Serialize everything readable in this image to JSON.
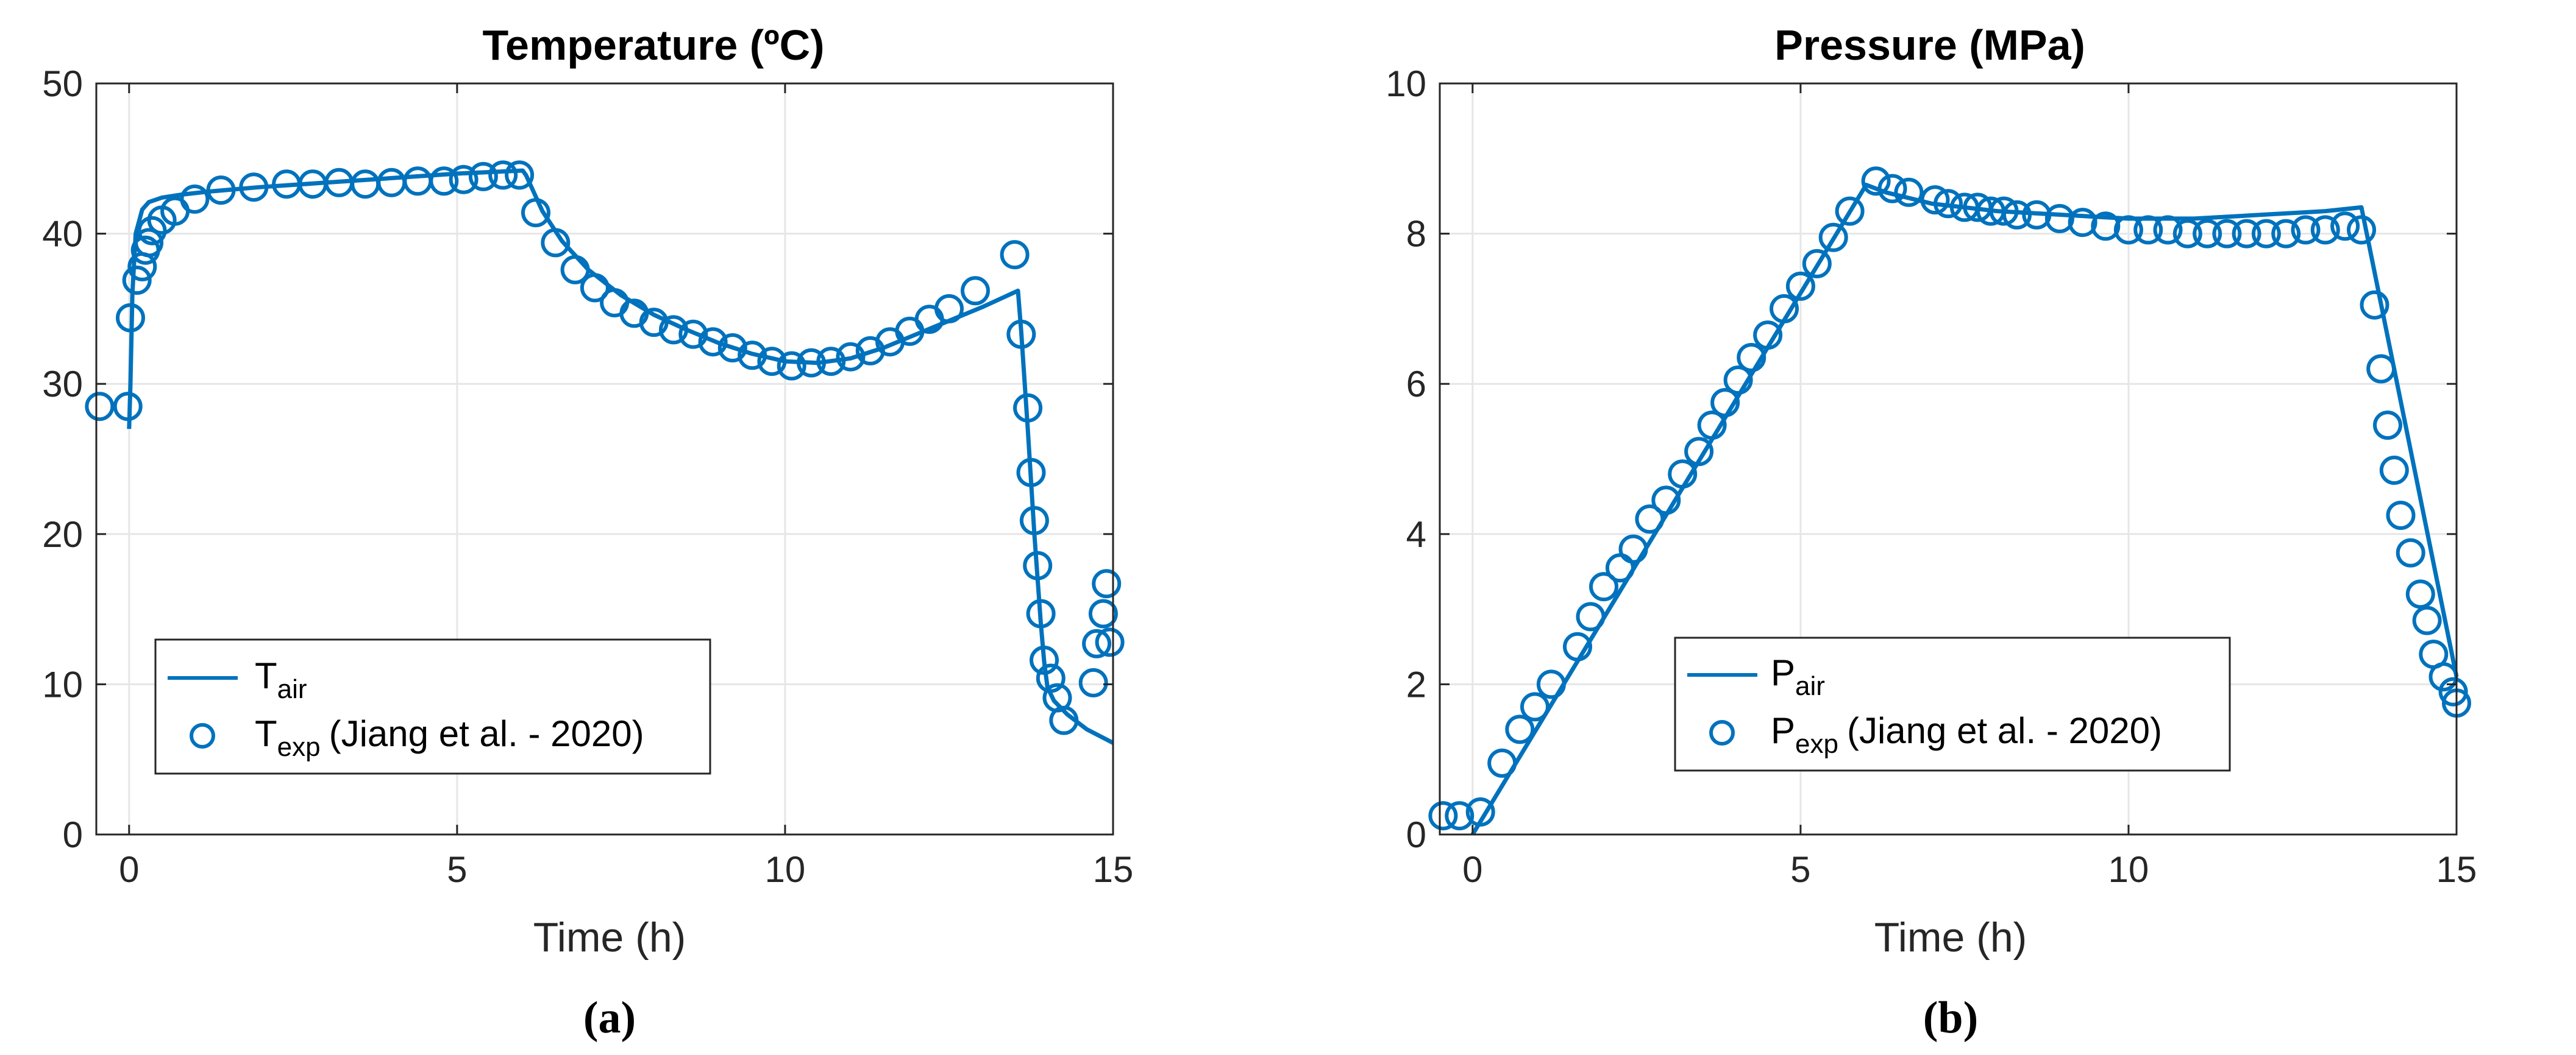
{
  "colors": {
    "series": "#0072BD",
    "grid": "#E6E6E6",
    "axis": "#262626",
    "background": "#FFFFFF"
  },
  "panels": [
    {
      "label": "(a)"
    },
    {
      "label": "(b)"
    }
  ],
  "chart_data": [
    {
      "type": "line",
      "title": "Temperature (ºC)",
      "xlabel": "Time (h)",
      "ylabel": "",
      "xlim": [
        -0.5,
        15
      ],
      "ylim": [
        0,
        50
      ],
      "xticks": [
        0,
        5,
        10,
        15
      ],
      "yticks": [
        0,
        10,
        20,
        30,
        40,
        50
      ],
      "grid": true,
      "legend_position": "bottom-left",
      "series": [
        {
          "name": "T_air",
          "legend_main": "T",
          "legend_sub": "air",
          "legend_tail": "",
          "style": "line",
          "x": [
            0,
            0.02,
            0.05,
            0.1,
            0.2,
            0.3,
            0.5,
            0.8,
            1.2,
            2,
            3,
            4,
            5,
            5.5,
            6.0,
            6.05,
            6.3,
            6.6,
            7.0,
            7.5,
            8.0,
            8.5,
            9.0,
            9.5,
            10.0,
            10.5,
            11.0,
            11.5,
            12.0,
            12.5,
            13.0,
            13.55,
            13.6,
            13.7,
            13.8,
            13.9,
            13.95,
            14.0,
            14.1,
            14.3,
            14.6,
            15.0
          ],
          "y": [
            27.0,
            30.0,
            36.0,
            40.0,
            41.6,
            42.1,
            42.4,
            42.6,
            42.8,
            43.1,
            43.4,
            43.7,
            44.0,
            44.1,
            44.2,
            43.9,
            41.5,
            39.5,
            37.6,
            35.9,
            34.6,
            33.6,
            32.7,
            32.0,
            31.5,
            31.4,
            31.7,
            32.4,
            33.3,
            34.2,
            35.1,
            36.2,
            33.5,
            27.0,
            20.0,
            14.0,
            11.5,
            9.8,
            8.9,
            8.0,
            7.0,
            6.1
          ]
        },
        {
          "name": "T_exp (Jiang et al. - 2020)",
          "legend_main": "T",
          "legend_sub": "exp",
          "legend_tail": "(Jiang et al. - 2020)",
          "style": "markers",
          "x": [
            -0.45,
            -0.02,
            0.02,
            0.12,
            0.2,
            0.25,
            0.3,
            0.35,
            0.5,
            0.7,
            1.0,
            1.4,
            1.9,
            2.4,
            2.8,
            3.2,
            3.6,
            4.0,
            4.4,
            4.8,
            5.1,
            5.4,
            5.7,
            5.95,
            6.2,
            6.5,
            6.8,
            7.1,
            7.4,
            7.7,
            8.0,
            8.3,
            8.6,
            8.9,
            9.2,
            9.5,
            9.8,
            10.1,
            10.4,
            10.7,
            11.0,
            11.3,
            11.6,
            11.9,
            12.2,
            12.5,
            12.9,
            13.5,
            13.6,
            13.7,
            13.75,
            13.8,
            13.85,
            13.9,
            13.95,
            14.05,
            14.15,
            14.25,
            14.7,
            14.75,
            14.85,
            14.9,
            14.95
          ],
          "y": [
            28.5,
            28.5,
            34.4,
            36.9,
            37.8,
            38.9,
            39.4,
            40.2,
            40.9,
            41.5,
            42.3,
            42.9,
            43.1,
            43.3,
            43.3,
            43.4,
            43.3,
            43.4,
            43.5,
            43.5,
            43.6,
            43.8,
            43.9,
            43.9,
            41.4,
            39.4,
            37.6,
            36.4,
            35.4,
            34.7,
            34.1,
            33.6,
            33.3,
            32.8,
            32.4,
            31.9,
            31.5,
            31.2,
            31.4,
            31.5,
            31.8,
            32.2,
            32.8,
            33.5,
            34.3,
            35.0,
            36.2,
            38.6,
            33.3,
            28.4,
            24.1,
            20.9,
            17.9,
            14.7,
            11.6,
            10.4,
            9.1,
            7.6,
            10.1,
            12.7,
            14.7,
            16.7,
            12.8
          ]
        }
      ]
    },
    {
      "type": "line",
      "title": "Pressure (MPa)",
      "xlabel": "Time (h)",
      "ylabel": "",
      "xlim": [
        -0.5,
        15
      ],
      "ylim": [
        0,
        10
      ],
      "xticks": [
        0,
        5,
        10,
        15
      ],
      "yticks": [
        0,
        2,
        4,
        6,
        8,
        10
      ],
      "grid": true,
      "legend_position": "bottom-center",
      "series": [
        {
          "name": "P_air",
          "legend_main": "P",
          "legend_sub": "air",
          "legend_tail": "",
          "style": "line",
          "x": [
            0,
            6.0,
            6.3,
            7.0,
            8.0,
            9.0,
            10.0,
            11.0,
            12.0,
            13.0,
            13.55,
            15.0
          ],
          "y": [
            0,
            8.65,
            8.55,
            8.4,
            8.3,
            8.25,
            8.2,
            8.2,
            8.25,
            8.3,
            8.35,
            2.1
          ]
        },
        {
          "name": "P_exp (Jiang et al. - 2020)",
          "legend_main": "P",
          "legend_sub": "exp",
          "legend_tail": "(Jiang et al. - 2020)",
          "style": "markers",
          "x": [
            -0.45,
            -0.2,
            0.12,
            0.45,
            0.72,
            0.95,
            1.2,
            1.6,
            1.8,
            2.0,
            2.25,
            2.45,
            2.7,
            2.95,
            3.2,
            3.45,
            3.65,
            3.85,
            4.05,
            4.25,
            4.5,
            4.75,
            5.0,
            5.25,
            5.5,
            5.75,
            6.15,
            6.4,
            6.65,
            7.05,
            7.25,
            7.5,
            7.7,
            7.9,
            8.1,
            8.3,
            8.6,
            8.95,
            9.3,
            9.65,
            10.0,
            10.3,
            10.6,
            10.9,
            11.2,
            11.5,
            11.8,
            12.1,
            12.4,
            12.7,
            13.0,
            13.3,
            13.55,
            13.75,
            13.85,
            13.95,
            14.05,
            14.15,
            14.3,
            14.45,
            14.55,
            14.65,
            14.8,
            14.95,
            15.0
          ],
          "y": [
            0.25,
            0.25,
            0.3,
            0.95,
            1.4,
            1.7,
            2.0,
            2.5,
            2.9,
            3.3,
            3.55,
            3.8,
            4.2,
            4.45,
            4.8,
            5.1,
            5.45,
            5.75,
            6.05,
            6.35,
            6.65,
            7.0,
            7.3,
            7.6,
            7.95,
            8.3,
            8.7,
            8.6,
            8.55,
            8.45,
            8.4,
            8.35,
            8.35,
            8.3,
            8.3,
            8.25,
            8.25,
            8.2,
            8.15,
            8.1,
            8.05,
            8.05,
            8.05,
            8.0,
            8.0,
            8.0,
            8.0,
            8.0,
            8.0,
            8.05,
            8.05,
            8.1,
            8.05,
            7.05,
            6.2,
            5.45,
            4.85,
            4.25,
            3.75,
            3.2,
            2.85,
            2.4,
            2.1,
            1.9,
            1.75
          ]
        }
      ]
    }
  ]
}
